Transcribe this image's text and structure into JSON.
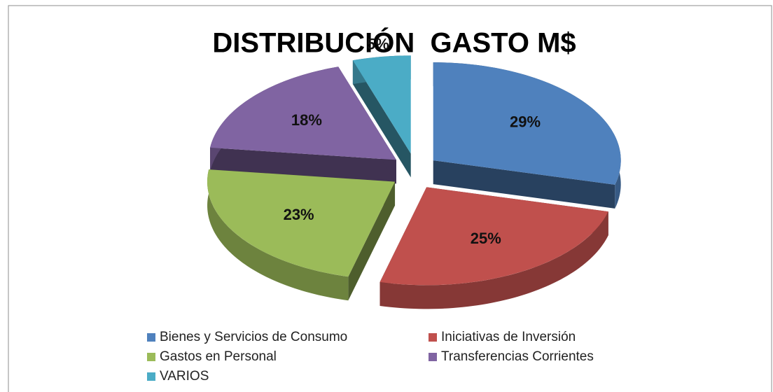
{
  "chart_data": {
    "type": "pie",
    "title": "DISTRIBUCIÓN  GASTO M$",
    "categories": [
      "Bienes y Servicios de Consumo",
      "Iniciativas de Inversión",
      "Gastos en Personal",
      "Transferencias Corrientes",
      "VARIOS"
    ],
    "values": [
      29,
      25,
      23,
      18,
      5
    ],
    "value_labels": [
      "29%",
      "25%",
      "23%",
      "18%",
      "5%"
    ],
    "colors": [
      "#4f81bd",
      "#c0504d",
      "#9bbb59",
      "#8064a2",
      "#4bacc6"
    ],
    "legend": "bottom"
  }
}
